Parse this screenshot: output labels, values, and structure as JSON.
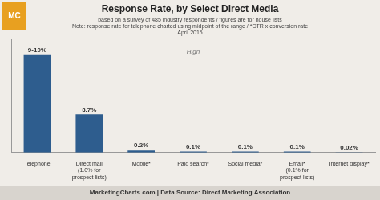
{
  "chart_data": {
    "type": "bar",
    "title": "Response Rate, by Select Direct Media",
    "subtitle": [
      "based on a survey of 485 industry respondents / figures are for house lists",
      "Note: response rate for telephone charted using midpoint of the range / *CTR x conversion rate",
      "April 2015"
    ],
    "categories": [
      "Telephone",
      "Direct mail",
      "Mobile*",
      "Paid search*",
      "Social media*",
      "Email*",
      "Internet display*"
    ],
    "category_notes": [
      null,
      "(1.0% for\nprospect lists)",
      null,
      null,
      null,
      "(0.1% for\nprospect lists)",
      null
    ],
    "values": [
      9.5,
      3.7,
      0.2,
      0.1,
      0.1,
      0.1,
      0.02
    ],
    "value_labels": [
      "9-10%",
      "3.7%",
      "0.2%",
      "0.1%",
      "0.1%",
      "0.1%",
      "0.02%"
    ],
    "data_labels": true,
    "color": "#2e5d8e",
    "ylim": [
      0,
      11
    ],
    "yticks": [],
    "tick_labels": "x",
    "grid": false,
    "annotations": [
      {
        "text": "High",
        "category": "Paid search*",
        "y": 9.5
      }
    ],
    "footer": "MarketingCharts.com | Data Source: Direct Marketing Association",
    "logo": "MC"
  }
}
